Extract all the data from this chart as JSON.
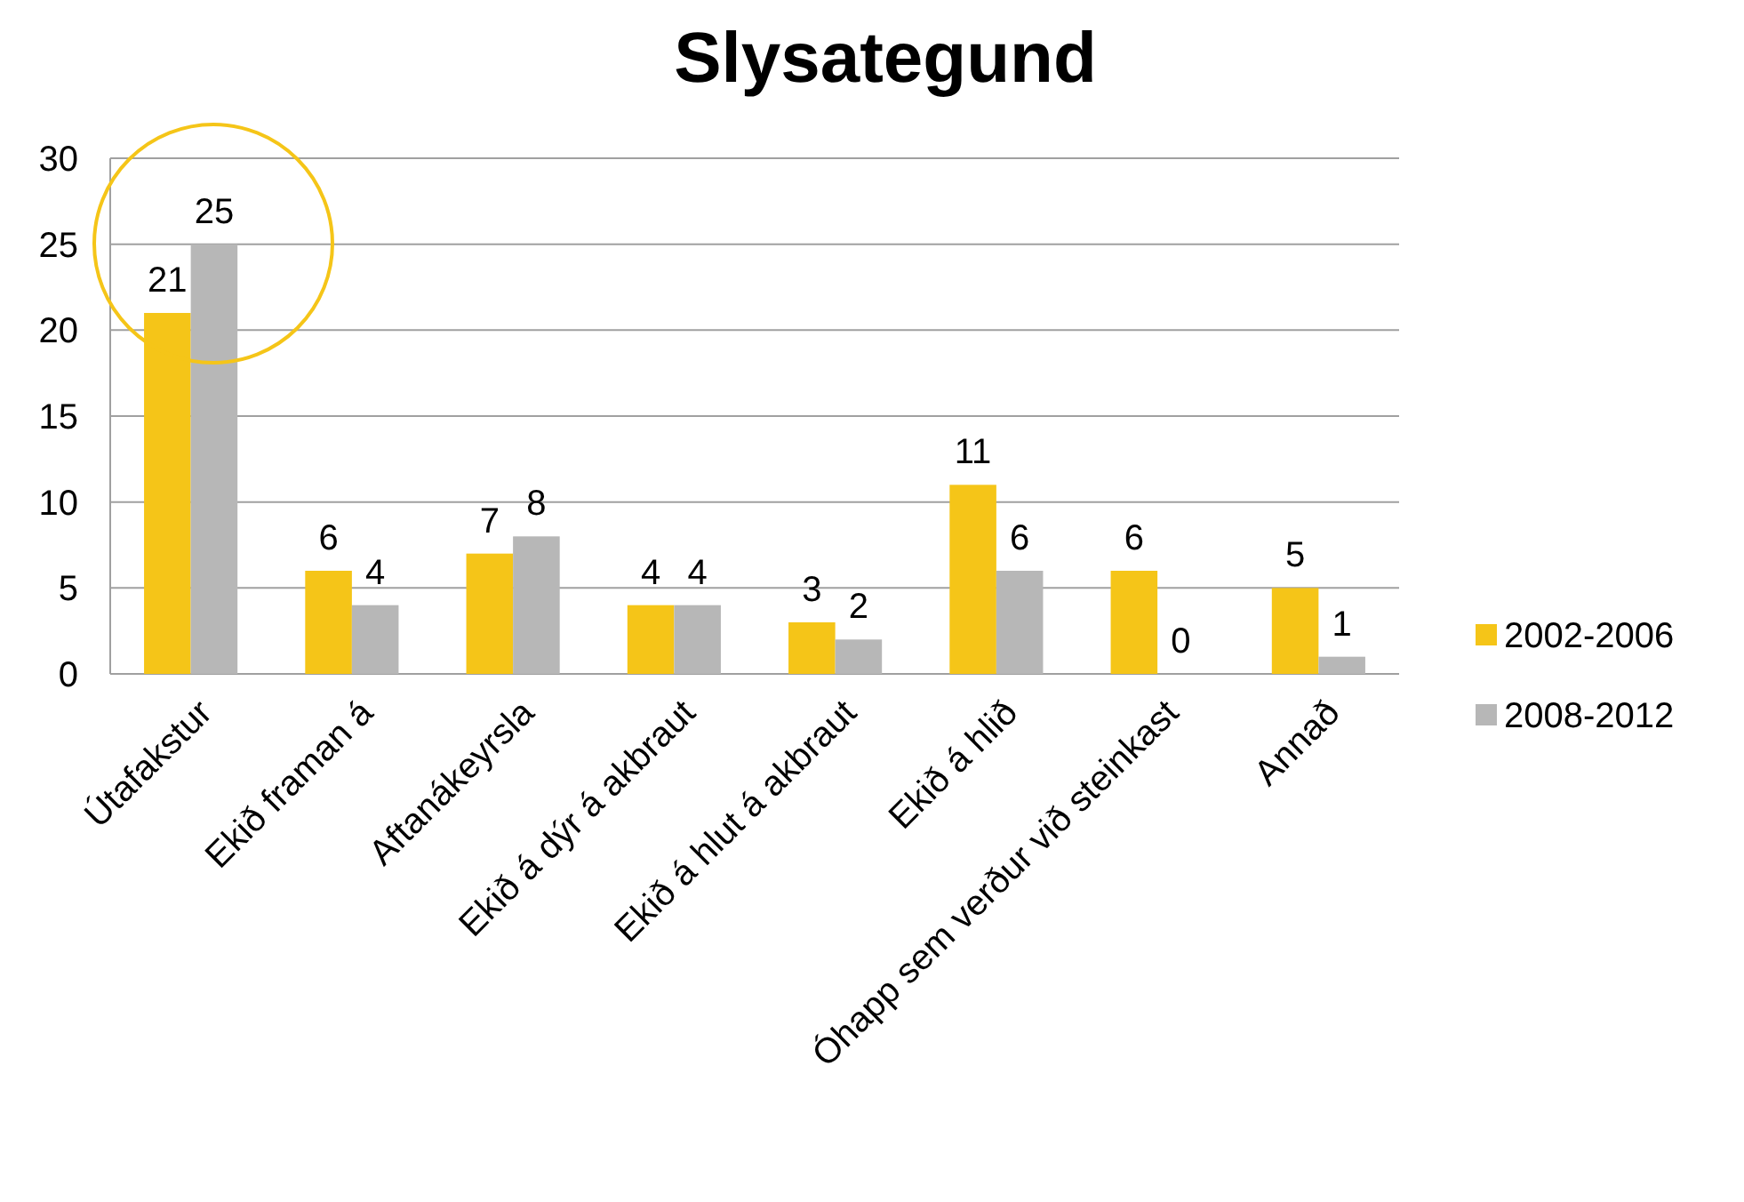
{
  "chart_data": {
    "type": "bar",
    "title": "Slysategund",
    "categories": [
      "Útafakstur",
      "Ekið framan á",
      "Aftanákeyrsla",
      "Ekið á dýr á akbraut",
      "Ekið á hlut á akbraut",
      "Ekið á hlið",
      "Óhapp sem verður við steinkast",
      "Annað"
    ],
    "series": [
      {
        "name": "2002-2006",
        "color": "#f5c518",
        "values": [
          21,
          6,
          7,
          4,
          3,
          11,
          6,
          5
        ]
      },
      {
        "name": "2008-2012",
        "color": "#b7b7b7",
        "values": [
          25,
          4,
          8,
          4,
          2,
          6,
          0,
          1
        ]
      }
    ],
    "ylim": [
      0,
      30
    ],
    "yticks": [
      0,
      5,
      10,
      15,
      20,
      25,
      30
    ],
    "grid": "y",
    "legend": "right",
    "data_labels": true
  }
}
